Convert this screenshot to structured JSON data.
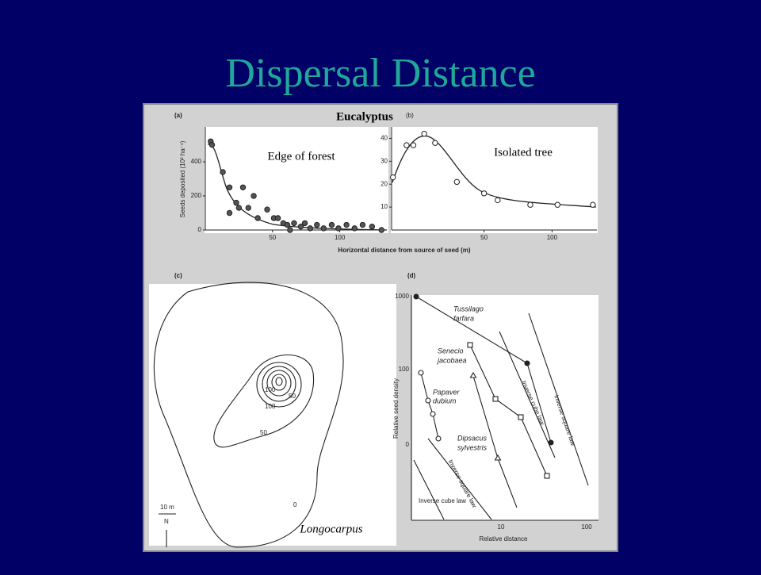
{
  "title": "Dispersal Distance",
  "figure": {
    "species_label": "Eucalyptus",
    "xlabel": "Horizontal distance from source of seed (m)",
    "panel_a": {
      "label": "(a)",
      "annotation": "Edge of forest",
      "ylabel": "Seeds deposited (10² ha⁻¹)",
      "xlim": [
        0,
        135
      ],
      "ylim": [
        0,
        605
      ],
      "xticks": [
        50,
        100
      ],
      "yticks": [
        0,
        200,
        400
      ],
      "x": [
        4,
        5,
        13,
        18,
        18,
        23,
        25,
        28,
        32,
        36,
        39,
        46,
        51,
        54,
        58,
        61,
        63,
        66,
        71,
        74,
        78,
        83,
        88,
        94,
        99,
        105,
        111,
        117,
        124,
        131
      ],
      "y": [
        520,
        500,
        340,
        250,
        100,
        160,
        130,
        250,
        130,
        200,
        70,
        120,
        70,
        70,
        40,
        30,
        0,
        40,
        20,
        40,
        10,
        30,
        10,
        30,
        10,
        30,
        10,
        30,
        20,
        0
      ]
    },
    "panel_b": {
      "label": "(b)",
      "annotation": "Isolated tree",
      "xlim": [
        -18,
        133
      ],
      "ylim": [
        0,
        45
      ],
      "xticks": [
        50,
        100
      ],
      "yticks": [
        10,
        20,
        30,
        40
      ],
      "x": [
        -17,
        -7,
        -2,
        6,
        14,
        30,
        50,
        60,
        84,
        104,
        130
      ],
      "y": [
        23,
        37,
        37,
        42,
        38,
        21,
        16,
        13,
        11,
        11,
        11
      ]
    },
    "panel_c": {
      "label": "(c)",
      "contour_labels": [
        "100",
        "50",
        "0",
        "50",
        "100"
      ],
      "scale": "10 m",
      "north": "N",
      "species": "Longocarpus"
    },
    "panel_d": {
      "label": "(d)",
      "ylabel": "Relative seed density",
      "xlabel": "Relative distance",
      "yticks": [
        "1000",
        "100",
        "0"
      ],
      "xticks": [
        "10",
        "100"
      ],
      "species": [
        [
          "Tussilago",
          "farfara"
        ],
        [
          "Senecio",
          "jacobaea"
        ],
        [
          "Papaver",
          "dubium"
        ],
        [
          "Dipsacus",
          "sylvestris"
        ]
      ],
      "laws": [
        "Inverse square law",
        "Inverse cube law",
        "Inverse square law",
        "Inverse cube law"
      ]
    }
  }
}
